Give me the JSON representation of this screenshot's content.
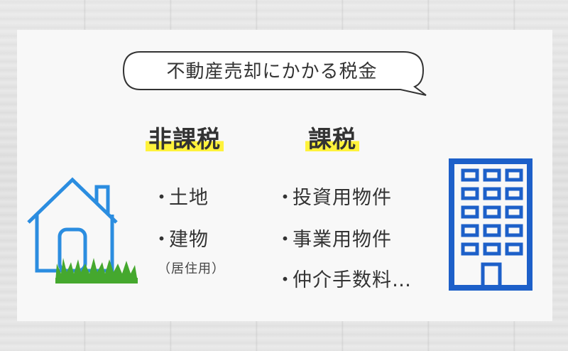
{
  "title": "不動産売却にかかる税金",
  "non_taxable": {
    "heading": "非課税",
    "items": [
      "土地",
      "建物"
    ],
    "note": "（居住用）"
  },
  "taxable": {
    "heading": "課税",
    "items": [
      "投資用物件",
      "事業用物件",
      "仲介手数料…"
    ]
  },
  "bullet": "・",
  "colors": {
    "house": "#2b8de0",
    "grass": "#45a82e",
    "building": "#1d60c9",
    "highlight": "#fff23b"
  },
  "icons": [
    "house-icon",
    "building-icon"
  ]
}
